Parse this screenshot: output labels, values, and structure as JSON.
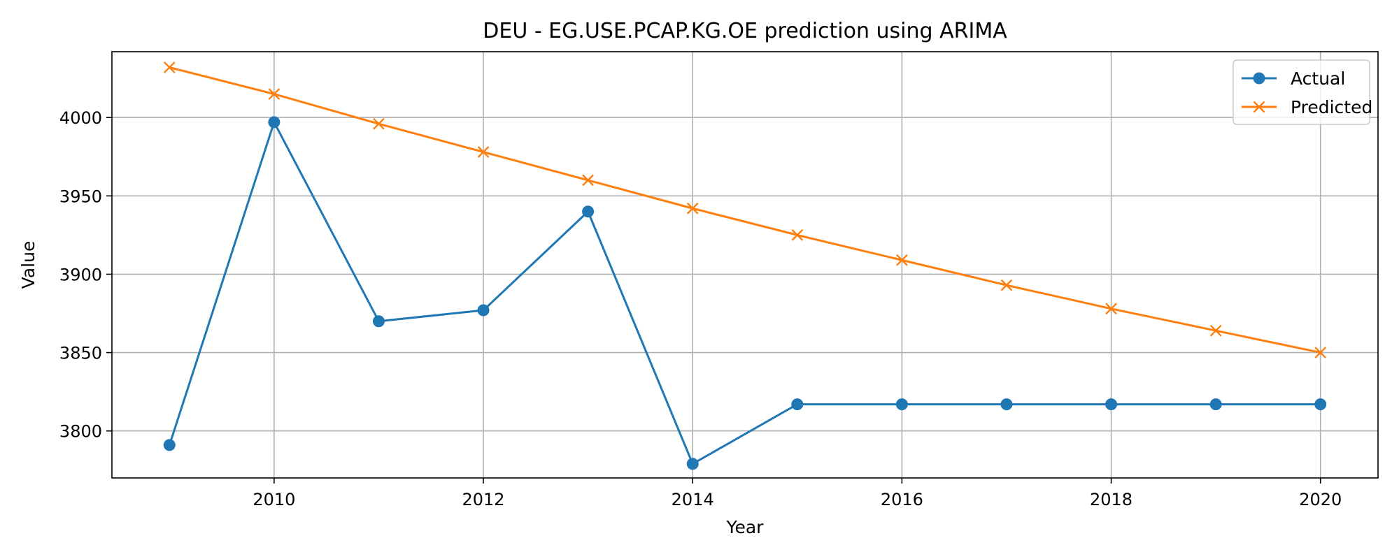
{
  "chart_data": {
    "type": "line",
    "title": "DEU - EG.USE.PCAP.KG.OE prediction using ARIMA",
    "xlabel": "Year",
    "ylabel": "Value",
    "xlim": [
      2008.45,
      2020.55
    ],
    "ylim": [
      3770,
      4042
    ],
    "x_ticks": [
      2010,
      2012,
      2014,
      2016,
      2018,
      2020
    ],
    "y_ticks": [
      3800,
      3850,
      3900,
      3950,
      4000
    ],
    "grid": true,
    "legend_position": "top-right",
    "x": [
      2009,
      2010,
      2011,
      2012,
      2013,
      2014,
      2015,
      2016,
      2017,
      2018,
      2019,
      2020
    ],
    "series": [
      {
        "name": "Actual",
        "color": "#1f77b4",
        "marker": "circle",
        "values": [
          3791,
          3997,
          3870,
          3877,
          3940,
          3779,
          3817,
          3817,
          3817,
          3817,
          3817,
          3817
        ]
      },
      {
        "name": "Predicted",
        "color": "#ff7f0e",
        "marker": "x",
        "values": [
          4032,
          4015,
          3996,
          3978,
          3960,
          3942,
          3925,
          3909,
          3893,
          3878,
          3864,
          3850
        ]
      }
    ]
  }
}
